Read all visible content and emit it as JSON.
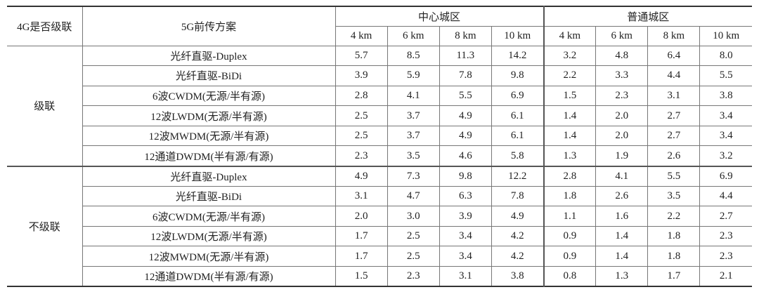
{
  "table": {
    "header": {
      "cascade": "4G是否级联",
      "scheme": "5G前传方案",
      "regions": [
        "中心城区",
        "普通城区"
      ],
      "distances": [
        "4 km",
        "6 km",
        "8 km",
        "10 km",
        "4 km",
        "6 km",
        "8 km",
        "10 km"
      ]
    },
    "groups": [
      {
        "label": "级联",
        "rows": [
          {
            "scheme": "光纤直驱-Duplex",
            "values": [
              "5.7",
              "8.5",
              "11.3",
              "14.2",
              "3.2",
              "4.8",
              "6.4",
              "8.0"
            ]
          },
          {
            "scheme": "光纤直驱-BiDi",
            "values": [
              "3.9",
              "5.9",
              "7.8",
              "9.8",
              "2.2",
              "3.3",
              "4.4",
              "5.5"
            ]
          },
          {
            "scheme": "6波CWDM(无源/半有源)",
            "values": [
              "2.8",
              "4.1",
              "5.5",
              "6.9",
              "1.5",
              "2.3",
              "3.1",
              "3.8"
            ]
          },
          {
            "scheme": "12波LWDM(无源/半有源)",
            "values": [
              "2.5",
              "3.7",
              "4.9",
              "6.1",
              "1.4",
              "2.0",
              "2.7",
              "3.4"
            ]
          },
          {
            "scheme": "12波MWDM(无源/半有源)",
            "values": [
              "2.5",
              "3.7",
              "4.9",
              "6.1",
              "1.4",
              "2.0",
              "2.7",
              "3.4"
            ]
          },
          {
            "scheme": "12通道DWDM(半有源/有源)",
            "values": [
              "2.3",
              "3.5",
              "4.6",
              "5.8",
              "1.3",
              "1.9",
              "2.6",
              "3.2"
            ]
          }
        ]
      },
      {
        "label": "不级联",
        "rows": [
          {
            "scheme": "光纤直驱-Duplex",
            "values": [
              "4.9",
              "7.3",
              "9.8",
              "12.2",
              "2.8",
              "4.1",
              "5.5",
              "6.9"
            ]
          },
          {
            "scheme": "光纤直驱-BiDi",
            "values": [
              "3.1",
              "4.7",
              "6.3",
              "7.8",
              "1.8",
              "2.6",
              "3.5",
              "4.4"
            ]
          },
          {
            "scheme": "6波CWDM(无源/半有源)",
            "values": [
              "2.0",
              "3.0",
              "3.9",
              "4.9",
              "1.1",
              "1.6",
              "2.2",
              "2.7"
            ]
          },
          {
            "scheme": "12波LWDM(无源/半有源)",
            "values": [
              "1.7",
              "2.5",
              "3.4",
              "4.2",
              "0.9",
              "1.4",
              "1.8",
              "2.3"
            ]
          },
          {
            "scheme": "12波MWDM(无源/半有源)",
            "values": [
              "1.7",
              "2.5",
              "3.4",
              "4.2",
              "0.9",
              "1.4",
              "1.8",
              "2.3"
            ]
          },
          {
            "scheme": "12通道DWDM(半有源/有源)",
            "values": [
              "1.5",
              "2.3",
              "3.1",
              "3.8",
              "0.8",
              "1.3",
              "1.7",
              "2.1"
            ]
          }
        ]
      }
    ]
  }
}
